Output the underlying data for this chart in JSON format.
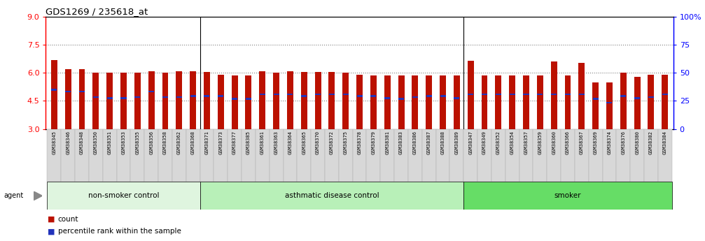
{
  "title": "GDS1269 / 235618_at",
  "samples": [
    "GSM38345",
    "GSM38346",
    "GSM38348",
    "GSM38350",
    "GSM38351",
    "GSM38353",
    "GSM38355",
    "GSM38356",
    "GSM38358",
    "GSM38362",
    "GSM38368",
    "GSM38371",
    "GSM38373",
    "GSM38377",
    "GSM38385",
    "GSM38361",
    "GSM38363",
    "GSM38364",
    "GSM38365",
    "GSM38370",
    "GSM38372",
    "GSM38375",
    "GSM38378",
    "GSM38379",
    "GSM38381",
    "GSM38383",
    "GSM38386",
    "GSM38387",
    "GSM38388",
    "GSM38389",
    "GSM38347",
    "GSM38349",
    "GSM38352",
    "GSM38354",
    "GSM38357",
    "GSM38359",
    "GSM38360",
    "GSM38366",
    "GSM38367",
    "GSM38369",
    "GSM38374",
    "GSM38376",
    "GSM38380",
    "GSM38382",
    "GSM38384"
  ],
  "red_heights": [
    6.7,
    6.2,
    6.2,
    6.0,
    6.0,
    6.0,
    6.0,
    6.1,
    6.0,
    6.1,
    6.1,
    6.05,
    5.9,
    5.85,
    5.85,
    6.1,
    6.0,
    6.1,
    6.05,
    6.05,
    6.05,
    6.0,
    5.9,
    5.85,
    5.85,
    5.85,
    5.85,
    5.85,
    5.85,
    5.85,
    6.65,
    5.85,
    5.85,
    5.85,
    5.85,
    5.85,
    6.6,
    5.85,
    6.55,
    5.5,
    5.5,
    6.0,
    5.8,
    5.9,
    5.9
  ],
  "blue_heights": [
    5.1,
    5.0,
    5.0,
    4.7,
    4.65,
    4.65,
    4.7,
    5.0,
    4.7,
    4.7,
    4.75,
    4.75,
    4.75,
    4.6,
    4.6,
    4.85,
    4.85,
    4.85,
    4.75,
    4.85,
    4.85,
    4.85,
    4.75,
    4.75,
    4.65,
    4.6,
    4.7,
    4.75,
    4.75,
    4.65,
    4.85,
    4.85,
    4.85,
    4.85,
    4.85,
    4.85,
    4.85,
    4.85,
    4.85,
    4.6,
    4.4,
    4.75,
    4.65,
    4.7,
    4.85
  ],
  "groups": [
    {
      "label": "non-smoker control",
      "start": 0,
      "end": 11,
      "color": "#dff5df"
    },
    {
      "label": "asthmatic disease control",
      "start": 11,
      "end": 30,
      "color": "#b8f0b8"
    },
    {
      "label": "smoker",
      "start": 30,
      "end": 45,
      "color": "#66dd66"
    }
  ],
  "group_boundary_indices": [
    11,
    30
  ],
  "y_min": 3,
  "y_max": 9,
  "y_ticks_left": [
    3,
    4.5,
    6,
    7.5,
    9
  ],
  "right_y_ticks": [
    0,
    25,
    50,
    75,
    100
  ],
  "bar_color": "#bb1100",
  "blue_color": "#2233bb",
  "bar_width": 0.45,
  "bar_base": 3.0,
  "xtick_bg": "#d8d8d8",
  "plot_bg": "#ffffff"
}
